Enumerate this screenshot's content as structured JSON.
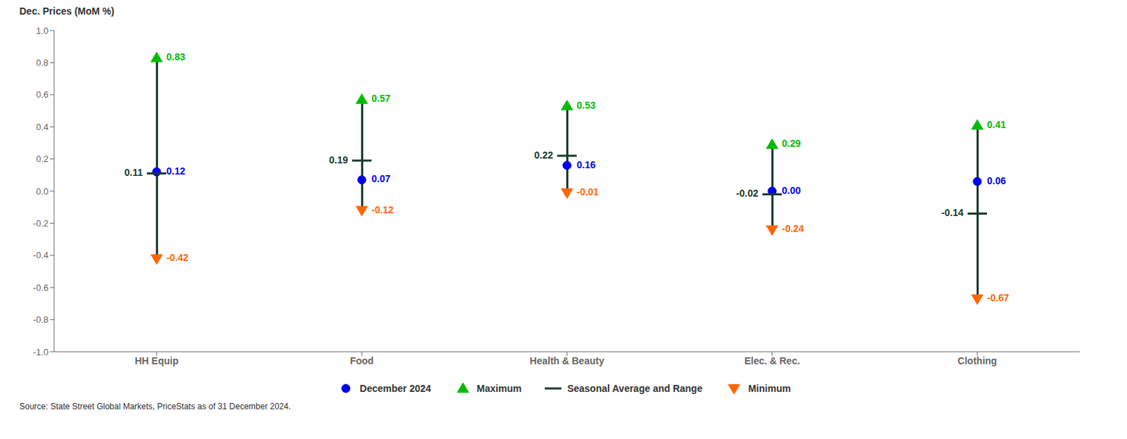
{
  "chart_data": {
    "type": "range",
    "ylabel": "Dec. Prices (MoM %)",
    "categories": [
      "HH Equip",
      "Food",
      "Health & Beauty",
      "Elec. & Rec.",
      "Clothing"
    ],
    "series": [
      {
        "name": "December 2024",
        "color": "#0000EE",
        "marker": "circle",
        "values": [
          0.12,
          0.07,
          0.16,
          0.0,
          0.06
        ],
        "value_labels": [
          "0.12",
          "0.07",
          "0.16",
          "0.00",
          "0.06"
        ]
      },
      {
        "name": "Maximum",
        "color": "#00BB00",
        "marker": "triangle-up",
        "values": [
          0.83,
          0.57,
          0.53,
          0.29,
          0.41
        ],
        "value_labels": [
          "0.83",
          "0.57",
          "0.53",
          "0.29",
          "0.41"
        ]
      },
      {
        "name": "Seasonal Average and Range",
        "color": "#1a3a2a",
        "marker": "dash",
        "values": [
          0.11,
          0.19,
          0.22,
          -0.02,
          -0.14
        ],
        "value_labels": [
          "0.11",
          "0.19",
          "0.22",
          "-0.02",
          "-0.14"
        ]
      },
      {
        "name": "Minimum",
        "color": "#FF6600",
        "marker": "triangle-down",
        "values": [
          -0.42,
          -0.12,
          -0.01,
          -0.24,
          -0.67
        ],
        "value_labels": [
          "-0.42",
          "-0.12",
          "-0.01",
          "-0.24",
          "-0.67"
        ]
      }
    ],
    "ylim": [
      -1,
      1
    ],
    "yticks": [
      {
        "value": -1,
        "label": "-1.0"
      },
      -0.8,
      -0.6,
      -0.4,
      -0.2,
      {
        "value": 0,
        "label": "0.0"
      },
      0.2,
      0.4,
      0.6,
      0.8,
      {
        "value": 1,
        "label": "1.0"
      }
    ],
    "data_labels": true,
    "legend": "bottom",
    "grid": false,
    "annotations": [
      "Source: State Street Global Markets, PriceStats as of 31 December 2024."
    ]
  }
}
